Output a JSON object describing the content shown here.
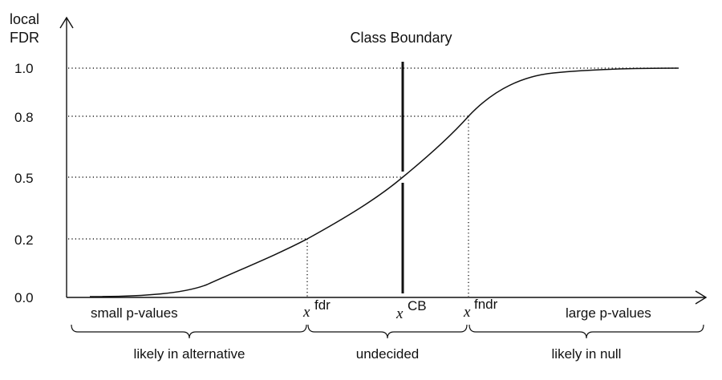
{
  "y_axis": {
    "label_line1": "local",
    "label_line2": "FDR"
  },
  "title": "Class Boundary",
  "y_ticks": [
    "1.0",
    "0.8",
    "0.5",
    "0.2",
    "0.0"
  ],
  "x_markers": [
    {
      "base": "x",
      "sup": "fdr"
    },
    {
      "base": "x",
      "sup": "CB"
    },
    {
      "base": "x",
      "sup": "fndr"
    }
  ],
  "x_annotations": {
    "left": "small p-values",
    "right": "large p-values"
  },
  "regions": [
    {
      "label": "likely in alternative"
    },
    {
      "label": "undecided"
    },
    {
      "label": "likely in null"
    }
  ]
}
